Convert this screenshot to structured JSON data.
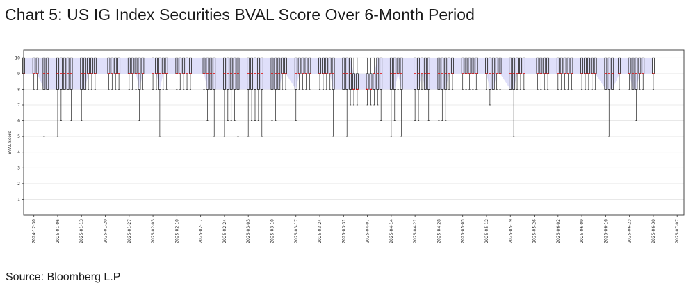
{
  "header": {
    "title": "Chart 5: US IG Index Securities BVAL Score Over 6-Month Period"
  },
  "footer": {
    "source": "Source: Bloomberg L.P"
  },
  "colors": {
    "band_fill": "#dcdcfa",
    "box_stroke": "#222222",
    "median": "#e01010",
    "grid": "#e4e4e4",
    "frame": "#333333"
  },
  "chart_data": {
    "type": "box",
    "title": "Chart 5: US IG Index Securities BVAL Score Over 6-Month Period",
    "xlabel": "",
    "ylabel": "BVAL Score",
    "ylim": [
      0,
      10.5
    ],
    "yticks": [
      1,
      2,
      3,
      4,
      5,
      6,
      7,
      8,
      9,
      10
    ],
    "grid": true,
    "x_range": [
      "2024-12-27",
      "2025-07-09"
    ],
    "x_tick_labels": [
      "2024-12-30",
      "2025-01-06",
      "2025-01-13",
      "2025-01-20",
      "2025-01-27",
      "2025-02-03",
      "2025-02-10",
      "2025-02-17",
      "2025-02-24",
      "2025-03-03",
      "2025-03-10",
      "2025-03-17",
      "2025-03-24",
      "2025-03-31",
      "2025-04-07",
      "2025-04-14",
      "2025-04-21",
      "2025-04-28",
      "2025-05-05",
      "2025-05-12",
      "2025-05-19",
      "2025-05-26",
      "2025-06-02",
      "2025-06-09",
      "2025-06-16",
      "2025-06-23",
      "2025-06-30",
      "2025-07-07"
    ],
    "series": [
      {
        "date": "2024-12-27",
        "q1": 9,
        "median": 9,
        "q3": 10,
        "min": 8,
        "max": 10
      },
      {
        "date": "2024-12-30",
        "q1": 9,
        "median": 9,
        "q3": 10,
        "min": 8,
        "max": 10
      },
      {
        "date": "2024-12-31",
        "q1": 9,
        "median": 9,
        "q3": 10,
        "min": 8,
        "max": 10
      },
      {
        "date": "2025-01-02",
        "q1": 8,
        "median": 9,
        "q3": 10,
        "min": 5,
        "max": 10
      },
      {
        "date": "2025-01-03",
        "q1": 8,
        "median": 9,
        "q3": 10,
        "min": 8,
        "max": 10
      },
      {
        "date": "2025-01-06",
        "q1": 8,
        "median": 9,
        "q3": 10,
        "min": 5,
        "max": 10
      },
      {
        "date": "2025-01-07",
        "q1": 8,
        "median": 9,
        "q3": 10,
        "min": 6,
        "max": 10
      },
      {
        "date": "2025-01-08",
        "q1": 8,
        "median": 9,
        "q3": 10,
        "min": 8,
        "max": 10
      },
      {
        "date": "2025-01-09",
        "q1": 8,
        "median": 9,
        "q3": 10,
        "min": 8,
        "max": 10
      },
      {
        "date": "2025-01-10",
        "q1": 8,
        "median": 9,
        "q3": 10,
        "min": 6,
        "max": 10
      },
      {
        "date": "2025-01-13",
        "q1": 8,
        "median": 9,
        "q3": 10,
        "min": 6,
        "max": 10
      },
      {
        "date": "2025-01-14",
        "q1": 8,
        "median": 9,
        "q3": 10,
        "min": 8,
        "max": 10
      },
      {
        "date": "2025-01-15",
        "q1": 9,
        "median": 9,
        "q3": 10,
        "min": 8,
        "max": 10
      },
      {
        "date": "2025-01-16",
        "q1": 9,
        "median": 9,
        "q3": 10,
        "min": 8,
        "max": 10
      },
      {
        "date": "2025-01-17",
        "q1": 9,
        "median": 9,
        "q3": 10,
        "min": 8,
        "max": 10
      },
      {
        "date": "2025-01-21",
        "q1": 9,
        "median": 9,
        "q3": 10,
        "min": 8,
        "max": 10
      },
      {
        "date": "2025-01-22",
        "q1": 9,
        "median": 9,
        "q3": 10,
        "min": 8,
        "max": 10
      },
      {
        "date": "2025-01-23",
        "q1": 9,
        "median": 9,
        "q3": 10,
        "min": 8,
        "max": 10
      },
      {
        "date": "2025-01-24",
        "q1": 9,
        "median": 9,
        "q3": 10,
        "min": 8,
        "max": 10
      },
      {
        "date": "2025-01-27",
        "q1": 9,
        "median": 9,
        "q3": 10,
        "min": 8,
        "max": 10
      },
      {
        "date": "2025-01-28",
        "q1": 9,
        "median": 9,
        "q3": 10,
        "min": 8,
        "max": 10
      },
      {
        "date": "2025-01-29",
        "q1": 9,
        "median": 9,
        "q3": 10,
        "min": 8,
        "max": 10
      },
      {
        "date": "2025-01-30",
        "q1": 8,
        "median": 9,
        "q3": 10,
        "min": 6,
        "max": 10
      },
      {
        "date": "2025-01-31",
        "q1": 9,
        "median": 9,
        "q3": 10,
        "min": 8,
        "max": 10
      },
      {
        "date": "2025-02-03",
        "q1": 9,
        "median": 9,
        "q3": 10,
        "min": 8,
        "max": 10
      },
      {
        "date": "2025-02-04",
        "q1": 9,
        "median": 9,
        "q3": 10,
        "min": 8,
        "max": 10
      },
      {
        "date": "2025-02-05",
        "q1": 8,
        "median": 9,
        "q3": 10,
        "min": 5,
        "max": 10
      },
      {
        "date": "2025-02-06",
        "q1": 9,
        "median": 9,
        "q3": 10,
        "min": 8,
        "max": 10
      },
      {
        "date": "2025-02-07",
        "q1": 9,
        "median": 9,
        "q3": 10,
        "min": 8,
        "max": 10
      },
      {
        "date": "2025-02-10",
        "q1": 9,
        "median": 9,
        "q3": 10,
        "min": 8,
        "max": 10
      },
      {
        "date": "2025-02-11",
        "q1": 9,
        "median": 9,
        "q3": 10,
        "min": 8,
        "max": 10
      },
      {
        "date": "2025-02-12",
        "q1": 9,
        "median": 9,
        "q3": 10,
        "min": 8,
        "max": 10
      },
      {
        "date": "2025-02-13",
        "q1": 9,
        "median": 9,
        "q3": 10,
        "min": 8,
        "max": 10
      },
      {
        "date": "2025-02-14",
        "q1": 9,
        "median": 9,
        "q3": 10,
        "min": 8,
        "max": 10
      },
      {
        "date": "2025-02-18",
        "q1": 9,
        "median": 9,
        "q3": 10,
        "min": 8,
        "max": 10
      },
      {
        "date": "2025-02-19",
        "q1": 8,
        "median": 9,
        "q3": 10,
        "min": 6,
        "max": 10
      },
      {
        "date": "2025-02-20",
        "q1": 8,
        "median": 9,
        "q3": 10,
        "min": 8,
        "max": 10
      },
      {
        "date": "2025-02-21",
        "q1": 8,
        "median": 9,
        "q3": 10,
        "min": 5,
        "max": 10
      },
      {
        "date": "2025-02-24",
        "q1": 8,
        "median": 9,
        "q3": 10,
        "min": 5,
        "max": 10
      },
      {
        "date": "2025-02-25",
        "q1": 8,
        "median": 9,
        "q3": 10,
        "min": 6,
        "max": 10
      },
      {
        "date": "2025-02-26",
        "q1": 8,
        "median": 9,
        "q3": 10,
        "min": 6,
        "max": 10
      },
      {
        "date": "2025-02-27",
        "q1": 8,
        "median": 9,
        "q3": 10,
        "min": 6,
        "max": 10
      },
      {
        "date": "2025-02-28",
        "q1": 8,
        "median": 9,
        "q3": 10,
        "min": 5,
        "max": 10
      },
      {
        "date": "2025-03-03",
        "q1": 8,
        "median": 9,
        "q3": 10,
        "min": 5,
        "max": 10
      },
      {
        "date": "2025-03-04",
        "q1": 8,
        "median": 9,
        "q3": 10,
        "min": 6,
        "max": 10
      },
      {
        "date": "2025-03-05",
        "q1": 8,
        "median": 9,
        "q3": 10,
        "min": 6,
        "max": 10
      },
      {
        "date": "2025-03-06",
        "q1": 8,
        "median": 9,
        "q3": 10,
        "min": 6,
        "max": 10
      },
      {
        "date": "2025-03-07",
        "q1": 8,
        "median": 9,
        "q3": 10,
        "min": 5,
        "max": 10
      },
      {
        "date": "2025-03-10",
        "q1": 8,
        "median": 9,
        "q3": 10,
        "min": 6,
        "max": 10
      },
      {
        "date": "2025-03-11",
        "q1": 8,
        "median": 9,
        "q3": 10,
        "min": 6,
        "max": 10
      },
      {
        "date": "2025-03-12",
        "q1": 8,
        "median": 9,
        "q3": 10,
        "min": 8,
        "max": 10
      },
      {
        "date": "2025-03-13",
        "q1": 9,
        "median": 9,
        "q3": 10,
        "min": 8,
        "max": 10
      },
      {
        "date": "2025-03-14",
        "q1": 9,
        "median": 9,
        "q3": 10,
        "min": 8,
        "max": 10
      },
      {
        "date": "2025-03-17",
        "q1": 8,
        "median": 9,
        "q3": 10,
        "min": 6,
        "max": 10
      },
      {
        "date": "2025-03-18",
        "q1": 9,
        "median": 9,
        "q3": 10,
        "min": 8,
        "max": 10
      },
      {
        "date": "2025-03-19",
        "q1": 9,
        "median": 9,
        "q3": 10,
        "min": 8,
        "max": 10
      },
      {
        "date": "2025-03-20",
        "q1": 9,
        "median": 9,
        "q3": 10,
        "min": 8,
        "max": 10
      },
      {
        "date": "2025-03-21",
        "q1": 9,
        "median": 9,
        "q3": 10,
        "min": 8,
        "max": 10
      },
      {
        "date": "2025-03-24",
        "q1": 9,
        "median": 9,
        "q3": 10,
        "min": 8,
        "max": 10
      },
      {
        "date": "2025-03-25",
        "q1": 9,
        "median": 9,
        "q3": 10,
        "min": 8,
        "max": 10
      },
      {
        "date": "2025-03-26",
        "q1": 9,
        "median": 9,
        "q3": 10,
        "min": 8,
        "max": 10
      },
      {
        "date": "2025-03-27",
        "q1": 9,
        "median": 9,
        "q3": 10,
        "min": 8,
        "max": 10
      },
      {
        "date": "2025-03-28",
        "q1": 8,
        "median": 9,
        "q3": 10,
        "min": 5,
        "max": 10
      },
      {
        "date": "2025-03-31",
        "q1": 8,
        "median": 9,
        "q3": 10,
        "min": 8,
        "max": 10
      },
      {
        "date": "2025-04-01",
        "q1": 8,
        "median": 9,
        "q3": 10,
        "min": 5,
        "max": 10
      },
      {
        "date": "2025-04-02",
        "q1": 8,
        "median": 9,
        "q3": 10,
        "min": 7,
        "max": 10
      },
      {
        "date": "2025-04-03",
        "q1": 8,
        "median": 8,
        "q3": 9,
        "min": 7,
        "max": 10
      },
      {
        "date": "2025-04-04",
        "q1": 8,
        "median": 8,
        "q3": 9,
        "min": 7,
        "max": 10
      },
      {
        "date": "2025-04-07",
        "q1": 8,
        "median": 8,
        "q3": 9,
        "min": 7,
        "max": 10
      },
      {
        "date": "2025-04-08",
        "q1": 8,
        "median": 8,
        "q3": 9,
        "min": 7,
        "max": 10
      },
      {
        "date": "2025-04-09",
        "q1": 8,
        "median": 9,
        "q3": 9,
        "min": 7,
        "max": 10
      },
      {
        "date": "2025-04-10",
        "q1": 8,
        "median": 9,
        "q3": 10,
        "min": 7,
        "max": 10
      },
      {
        "date": "2025-04-11",
        "q1": 8,
        "median": 9,
        "q3": 10,
        "min": 6,
        "max": 10
      },
      {
        "date": "2025-04-14",
        "q1": 8,
        "median": 9,
        "q3": 10,
        "min": 5,
        "max": 10
      },
      {
        "date": "2025-04-15",
        "q1": 8,
        "median": 9,
        "q3": 10,
        "min": 6,
        "max": 10
      },
      {
        "date": "2025-04-16",
        "q1": 9,
        "median": 9,
        "q3": 10,
        "min": 8,
        "max": 10
      },
      {
        "date": "2025-04-17",
        "q1": 8,
        "median": 9,
        "q3": 10,
        "min": 5,
        "max": 10
      },
      {
        "date": "2025-04-21",
        "q1": 8,
        "median": 9,
        "q3": 10,
        "min": 6,
        "max": 10
      },
      {
        "date": "2025-04-22",
        "q1": 8,
        "median": 9,
        "q3": 10,
        "min": 6,
        "max": 10
      },
      {
        "date": "2025-04-23",
        "q1": 9,
        "median": 9,
        "q3": 10,
        "min": 8,
        "max": 10
      },
      {
        "date": "2025-04-24",
        "q1": 8,
        "median": 9,
        "q3": 10,
        "min": 8,
        "max": 10
      },
      {
        "date": "2025-04-25",
        "q1": 8,
        "median": 9,
        "q3": 10,
        "min": 6,
        "max": 10
      },
      {
        "date": "2025-04-28",
        "q1": 8,
        "median": 9,
        "q3": 10,
        "min": 6,
        "max": 10
      },
      {
        "date": "2025-04-29",
        "q1": 8,
        "median": 9,
        "q3": 10,
        "min": 6,
        "max": 10
      },
      {
        "date": "2025-04-30",
        "q1": 8,
        "median": 9,
        "q3": 10,
        "min": 6,
        "max": 10
      },
      {
        "date": "2025-05-01",
        "q1": 9,
        "median": 9,
        "q3": 10,
        "min": 8,
        "max": 10
      },
      {
        "date": "2025-05-02",
        "q1": 9,
        "median": 9,
        "q3": 10,
        "min": 8,
        "max": 10
      },
      {
        "date": "2025-05-05",
        "q1": 9,
        "median": 9,
        "q3": 10,
        "min": 8,
        "max": 10
      },
      {
        "date": "2025-05-06",
        "q1": 9,
        "median": 9,
        "q3": 10,
        "min": 8,
        "max": 10
      },
      {
        "date": "2025-05-07",
        "q1": 9,
        "median": 9,
        "q3": 10,
        "min": 8,
        "max": 10
      },
      {
        "date": "2025-05-08",
        "q1": 9,
        "median": 9,
        "q3": 10,
        "min": 8,
        "max": 10
      },
      {
        "date": "2025-05-09",
        "q1": 9,
        "median": 9,
        "q3": 10,
        "min": 8,
        "max": 10
      },
      {
        "date": "2025-05-12",
        "q1": 9,
        "median": 9,
        "q3": 10,
        "min": 8,
        "max": 10
      },
      {
        "date": "2025-05-13",
        "q1": 8,
        "median": 9,
        "q3": 10,
        "min": 7,
        "max": 10
      },
      {
        "date": "2025-05-14",
        "q1": 8,
        "median": 9,
        "q3": 10,
        "min": 8,
        "max": 10
      },
      {
        "date": "2025-05-15",
        "q1": 9,
        "median": 9,
        "q3": 10,
        "min": 8,
        "max": 10
      },
      {
        "date": "2025-05-16",
        "q1": 9,
        "median": 9,
        "q3": 10,
        "min": 8,
        "max": 10
      },
      {
        "date": "2025-05-19",
        "q1": 8,
        "median": 9,
        "q3": 10,
        "min": 8,
        "max": 10
      },
      {
        "date": "2025-05-20",
        "q1": 8,
        "median": 9,
        "q3": 10,
        "min": 5,
        "max": 10
      },
      {
        "date": "2025-05-21",
        "q1": 9,
        "median": 9,
        "q3": 10,
        "min": 8,
        "max": 10
      },
      {
        "date": "2025-05-22",
        "q1": 9,
        "median": 9,
        "q3": 10,
        "min": 8,
        "max": 10
      },
      {
        "date": "2025-05-23",
        "q1": 9,
        "median": 9,
        "q3": 10,
        "min": 8,
        "max": 10
      },
      {
        "date": "2025-05-27",
        "q1": 9,
        "median": 9,
        "q3": 10,
        "min": 8,
        "max": 10
      },
      {
        "date": "2025-05-28",
        "q1": 9,
        "median": 9,
        "q3": 10,
        "min": 8,
        "max": 10
      },
      {
        "date": "2025-05-29",
        "q1": 9,
        "median": 9,
        "q3": 10,
        "min": 8,
        "max": 10
      },
      {
        "date": "2025-05-30",
        "q1": 9,
        "median": 9,
        "q3": 10,
        "min": 8,
        "max": 10
      },
      {
        "date": "2025-06-02",
        "q1": 9,
        "median": 9,
        "q3": 10,
        "min": 8,
        "max": 10
      },
      {
        "date": "2025-06-03",
        "q1": 9,
        "median": 9,
        "q3": 10,
        "min": 8,
        "max": 10
      },
      {
        "date": "2025-06-04",
        "q1": 9,
        "median": 9,
        "q3": 10,
        "min": 8,
        "max": 10
      },
      {
        "date": "2025-06-05",
        "q1": 9,
        "median": 9,
        "q3": 10,
        "min": 8,
        "max": 10
      },
      {
        "date": "2025-06-06",
        "q1": 9,
        "median": 9,
        "q3": 10,
        "min": 8,
        "max": 10
      },
      {
        "date": "2025-06-09",
        "q1": 9,
        "median": 9,
        "q3": 10,
        "min": 8,
        "max": 10
      },
      {
        "date": "2025-06-10",
        "q1": 9,
        "median": 9,
        "q3": 10,
        "min": 8,
        "max": 10
      },
      {
        "date": "2025-06-11",
        "q1": 9,
        "median": 9,
        "q3": 10,
        "min": 8,
        "max": 10
      },
      {
        "date": "2025-06-12",
        "q1": 9,
        "median": 9,
        "q3": 10,
        "min": 8,
        "max": 10
      },
      {
        "date": "2025-06-13",
        "q1": 9,
        "median": 9,
        "q3": 10,
        "min": 8,
        "max": 10
      },
      {
        "date": "2025-06-16",
        "q1": 8,
        "median": 9,
        "q3": 10,
        "min": 8,
        "max": 10
      },
      {
        "date": "2025-06-17",
        "q1": 8,
        "median": 9,
        "q3": 10,
        "min": 5,
        "max": 10
      },
      {
        "date": "2025-06-18",
        "q1": 8,
        "median": 9,
        "q3": 10,
        "min": 8,
        "max": 10
      },
      {
        "date": "2025-06-20",
        "q1": 9,
        "median": 9,
        "q3": 10,
        "min": 8,
        "max": 10
      },
      {
        "date": "2025-06-23",
        "q1": 9,
        "median": 9,
        "q3": 10,
        "min": 8,
        "max": 10
      },
      {
        "date": "2025-06-24",
        "q1": 8,
        "median": 9,
        "q3": 10,
        "min": 8,
        "max": 10
      },
      {
        "date": "2025-06-25",
        "q1": 8,
        "median": 9,
        "q3": 10,
        "min": 6,
        "max": 10
      },
      {
        "date": "2025-06-26",
        "q1": 9,
        "median": 9,
        "q3": 10,
        "min": 8,
        "max": 10
      },
      {
        "date": "2025-06-27",
        "q1": 9,
        "median": 9,
        "q3": 10,
        "min": 8,
        "max": 10
      },
      {
        "date": "2025-06-30",
        "q1": 9,
        "median": 9,
        "q3": 10,
        "min": 8,
        "max": 10
      }
    ]
  }
}
